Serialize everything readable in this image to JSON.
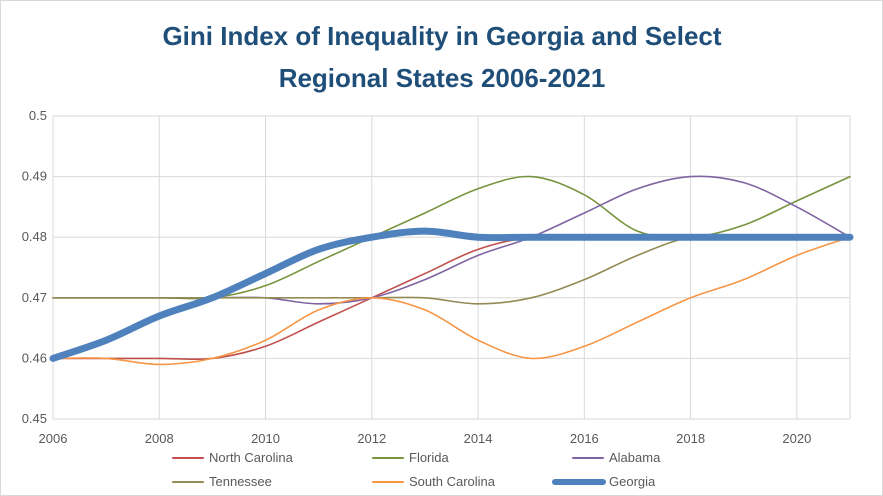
{
  "chart_data": {
    "type": "line",
    "title_lines": [
      "Gini Index of Inequality in Georgia and Select",
      "Regional States 2006-2021"
    ],
    "x": [
      2006,
      2007,
      2008,
      2009,
      2010,
      2011,
      2012,
      2013,
      2014,
      2015,
      2016,
      2017,
      2018,
      2019,
      2020,
      2021
    ],
    "xlim": [
      2006,
      2021
    ],
    "ylim": [
      0.45,
      0.5
    ],
    "x_ticks": [
      "2006",
      "2008",
      "2010",
      "2012",
      "2014",
      "2016",
      "2018",
      "2020"
    ],
    "y_ticks": [
      "0.5",
      "0.49",
      "0.48",
      "0.47",
      "0.46",
      "0.45"
    ],
    "grid": true,
    "legend_position": "bottom",
    "series": [
      {
        "name": "North Carolina",
        "color": "#c0504d",
        "width": 1.6,
        "values": [
          0.46,
          0.46,
          0.46,
          0.46,
          0.462,
          0.466,
          0.47,
          0.474,
          0.478,
          0.48,
          0.48,
          0.48,
          0.48,
          0.48,
          0.48,
          0.48
        ]
      },
      {
        "name": "Florida",
        "color": "#77933c",
        "width": 1.6,
        "values": [
          0.47,
          0.47,
          0.47,
          0.47,
          0.472,
          0.476,
          0.48,
          0.484,
          0.488,
          0.49,
          0.487,
          0.481,
          0.48,
          0.482,
          0.486,
          0.49
        ]
      },
      {
        "name": "Alabama",
        "color": "#8064a2",
        "width": 1.6,
        "values": [
          0.47,
          0.47,
          0.47,
          0.47,
          0.47,
          0.469,
          0.47,
          0.473,
          0.477,
          0.48,
          0.484,
          0.488,
          0.49,
          0.489,
          0.485,
          0.48
        ]
      },
      {
        "name": "Tennessee",
        "color": "#948a54",
        "width": 1.6,
        "values": [
          0.47,
          0.47,
          0.47,
          0.47,
          0.47,
          0.47,
          0.47,
          0.47,
          0.469,
          0.47,
          0.473,
          0.477,
          0.48,
          0.48,
          0.48,
          0.48
        ]
      },
      {
        "name": "South Carolina",
        "color": "#f79646",
        "width": 1.6,
        "values": [
          0.46,
          0.46,
          0.459,
          0.46,
          0.463,
          0.468,
          0.47,
          0.468,
          0.463,
          0.46,
          0.462,
          0.466,
          0.47,
          0.473,
          0.477,
          0.48
        ]
      },
      {
        "name": "Georgia",
        "color": "#4f81bd",
        "width": 7,
        "values": [
          0.46,
          0.463,
          0.467,
          0.47,
          0.474,
          0.478,
          0.48,
          0.481,
          0.48,
          0.48,
          0.48,
          0.48,
          0.48,
          0.48,
          0.48,
          0.48
        ]
      }
    ]
  }
}
